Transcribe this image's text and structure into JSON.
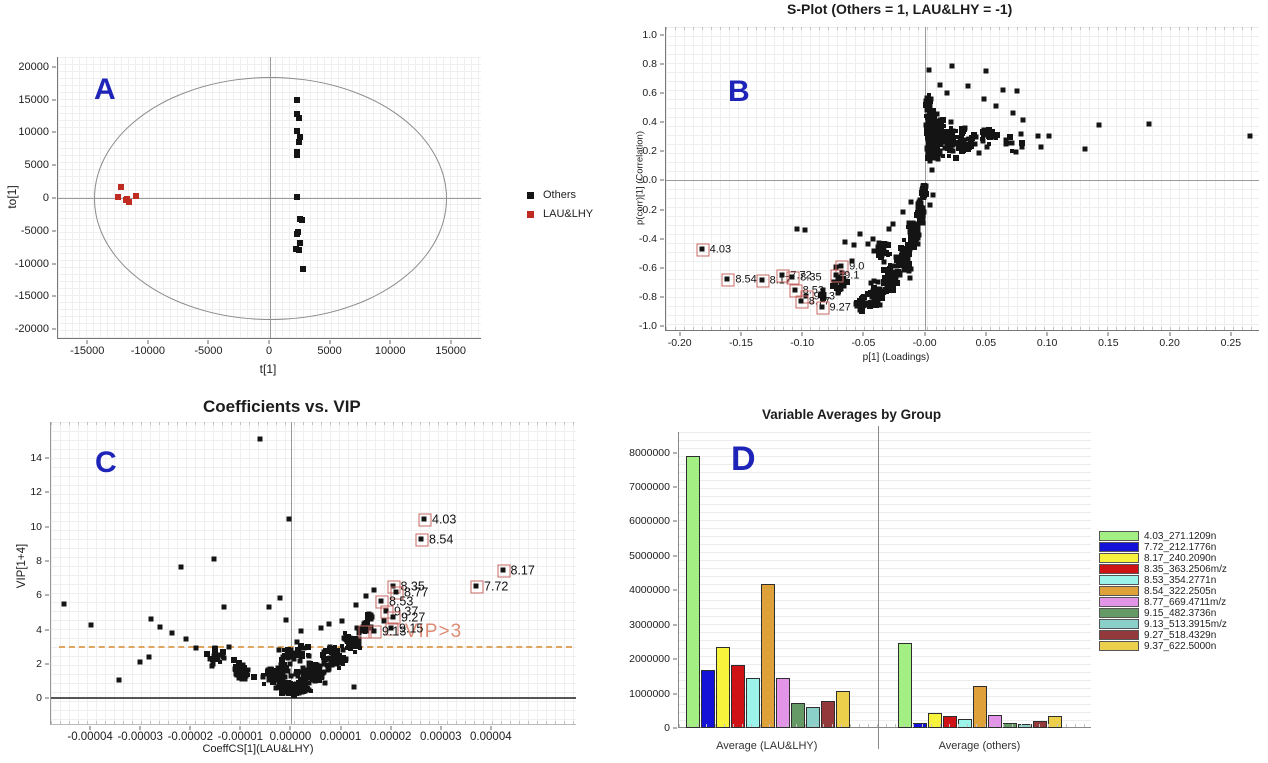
{
  "chart_data": [
    {
      "panel": "A",
      "letter": "A",
      "type": "scatter",
      "xlabel": "t[1]",
      "ylabel": "to[1]",
      "xlim": [
        -17500,
        17500
      ],
      "ylim": [
        -21500,
        21500
      ],
      "xticks": [
        {
          "v": -15000,
          "t": "-15000"
        },
        {
          "v": -10000,
          "t": "-10000"
        },
        {
          "v": -5000,
          "t": "-5000"
        },
        {
          "v": 0,
          "t": "0"
        },
        {
          "v": 5000,
          "t": "5000"
        },
        {
          "v": 10000,
          "t": "10000"
        },
        {
          "v": 15000,
          "t": "15000"
        }
      ],
      "yticks": [
        {
          "v": 20000,
          "t": "20000"
        },
        {
          "v": 15000,
          "t": "15000"
        },
        {
          "v": 10000,
          "t": "10000"
        },
        {
          "v": 5000,
          "t": "5000"
        },
        {
          "v": 0,
          "t": "0"
        },
        {
          "v": -5000,
          "t": "-5000"
        },
        {
          "v": -10000,
          "t": "-10000"
        },
        {
          "v": -15000,
          "t": "-15000"
        },
        {
          "v": -20000,
          "t": "-20000"
        }
      ],
      "zero_lines": true,
      "ellipse": {
        "cx": 0,
        "cy": 0,
        "rx": 14500,
        "ry": 18400
      },
      "legend_items": [
        {
          "label": "Others",
          "color": "#141414"
        },
        {
          "label": "LAU&LHY",
          "color": "#bf2b20"
        }
      ],
      "series": [
        {
          "name": "Others",
          "color": "#141414",
          "marker": 6,
          "points": [
            [
              2300,
              14900
            ],
            [
              2250,
              12750
            ],
            [
              2450,
              12150
            ],
            [
              2300,
              10100
            ],
            [
              2500,
              9300
            ],
            [
              2400,
              8500
            ],
            [
              2250,
              7000
            ],
            [
              2300,
              6450
            ],
            [
              2250,
              50
            ],
            [
              2500,
              -3250
            ],
            [
              2650,
              -3450
            ],
            [
              2350,
              -5350
            ],
            [
              2250,
              -5650
            ],
            [
              2550,
              -6900
            ],
            [
              2200,
              -7850
            ],
            [
              2400,
              -8100
            ],
            [
              2750,
              -10900
            ]
          ]
        },
        {
          "name": "LAU&LHY",
          "color": "#bf2b20",
          "marker": 6,
          "points": [
            [
              -12300,
              1650
            ],
            [
              -12550,
              150
            ],
            [
              -11900,
              -400
            ],
            [
              -11600,
              -700
            ],
            [
              -11050,
              300
            ],
            [
              -11750,
              -250
            ]
          ]
        }
      ]
    },
    {
      "panel": "B",
      "letter": "B",
      "type": "scatter",
      "title": "S-Plot (Others = 1, LAU&LHY = -1)",
      "xlabel": "p[1] (Loadings)",
      "ylabel": "p(corr)[1] (Correlation)",
      "xlim": [
        -0.212,
        0.273
      ],
      "ylim": [
        -1.035,
        1.055
      ],
      "xticks": [
        {
          "v": -0.2,
          "t": "-0.20"
        },
        {
          "v": -0.15,
          "t": "-0.15"
        },
        {
          "v": -0.1,
          "t": "-0.10"
        },
        {
          "v": -0.05,
          "t": "-0.05"
        },
        {
          "v": 0.0,
          "t": "-0.00"
        },
        {
          "v": 0.05,
          "t": "0.05"
        },
        {
          "v": 0.1,
          "t": "0.10"
        },
        {
          "v": 0.15,
          "t": "0.15"
        },
        {
          "v": 0.2,
          "t": "0.20"
        },
        {
          "v": 0.25,
          "t": "0.25"
        }
      ],
      "yticks": [
        {
          "v": 1.0,
          "t": "1.0"
        },
        {
          "v": 0.8,
          "t": "0.8"
        },
        {
          "v": 0.6,
          "t": "0.6"
        },
        {
          "v": 0.4,
          "t": "0.4"
        },
        {
          "v": 0.2,
          "t": "0.2"
        },
        {
          "v": 0.0,
          "t": "-0.0"
        },
        {
          "v": -0.2,
          "t": "-0.2"
        },
        {
          "v": -0.4,
          "t": "-0.4"
        },
        {
          "v": -0.6,
          "t": "-0.6"
        },
        {
          "v": -0.8,
          "t": "-0.8"
        },
        {
          "v": -1.0,
          "t": "-1.0"
        }
      ],
      "zero_lines": true,
      "point_color": "#141414",
      "outliers": [
        [
          -0.105,
          -0.335
        ],
        [
          -0.098,
          -0.345
        ],
        [
          -0.066,
          -0.425
        ],
        [
          -0.058,
          -0.447
        ],
        [
          -0.053,
          -0.373
        ],
        [
          -0.047,
          -0.443
        ],
        [
          -0.043,
          -0.405
        ],
        [
          -0.06,
          -0.556
        ],
        [
          -0.073,
          -0.603
        ],
        [
          -0.03,
          -0.338
        ],
        [
          -0.026,
          -0.306
        ],
        [
          0.095,
          0.225
        ],
        [
          0.101,
          0.305
        ],
        [
          0.131,
          0.212
        ],
        [
          0.142,
          0.381
        ],
        [
          0.183,
          0.386
        ],
        [
          0.266,
          0.305
        ],
        [
          0.075,
          0.612
        ],
        [
          0.064,
          0.618
        ],
        [
          0.05,
          0.752
        ],
        [
          0.022,
          0.786
        ],
        [
          0.003,
          0.756
        ],
        [
          0.035,
          0.651
        ],
        [
          0.048,
          0.557
        ],
        [
          0.058,
          0.509
        ],
        [
          0.072,
          0.463
        ],
        [
          0.08,
          0.412
        ],
        [
          0.092,
          0.302
        ],
        [
          0.012,
          0.652
        ],
        [
          0.018,
          0.601
        ],
        [
          0.006,
          -0.103
        ],
        [
          0.004,
          -0.172
        ],
        [
          -0.012,
          -0.151
        ],
        [
          -0.018,
          -0.218
        ]
      ],
      "clusters": [
        {
          "cx": 0.004,
          "cy": 0.33,
          "sx": 0.0045,
          "sy": 0.3,
          "n": 170,
          "minx": 0.0002
        },
        {
          "cx": 0.01,
          "cy": 0.3,
          "sx": 0.007,
          "sy": 0.22,
          "n": 90,
          "minx": 0.0002
        },
        {
          "cx": 0.02,
          "cy": 0.28,
          "sx": 0.009,
          "sy": 0.15,
          "n": 60,
          "minx": 0.0002
        },
        {
          "cx": 0.033,
          "cy": 0.27,
          "sx": 0.01,
          "sy": 0.13,
          "n": 40,
          "minx": 0.0002
        },
        {
          "cx": 0.05,
          "cy": 0.3,
          "sx": 0.012,
          "sy": 0.13,
          "n": 22,
          "minx": 0.0002
        },
        {
          "cx": 0.07,
          "cy": 0.27,
          "sx": 0.012,
          "sy": 0.11,
          "n": 10,
          "minx": 0.0002
        },
        {
          "cx": 0.002,
          "cy": 0.55,
          "sx": 0.004,
          "sy": 0.06,
          "n": 30,
          "minx": 0.0002
        },
        {
          "cx": -0.001,
          "cy": -0.08,
          "sx": 0.0025,
          "sy": 0.07,
          "n": 50,
          "maxx": 0.002,
          "maxy": -0.01
        },
        {
          "cx": -0.004,
          "cy": -0.22,
          "sx": 0.004,
          "sy": 0.1,
          "n": 55,
          "maxx": 0.002,
          "maxy": -0.02
        },
        {
          "cx": -0.009,
          "cy": -0.38,
          "sx": 0.006,
          "sy": 0.13,
          "n": 60,
          "maxx": 0.002,
          "maxy": -0.02
        },
        {
          "cx": -0.017,
          "cy": -0.55,
          "sx": 0.008,
          "sy": 0.14,
          "n": 60,
          "maxx": 0.002,
          "maxy": -0.02
        },
        {
          "cx": -0.028,
          "cy": -0.68,
          "sx": 0.009,
          "sy": 0.13,
          "n": 55,
          "maxx": 0.002,
          "maxy": -0.02
        },
        {
          "cx": -0.04,
          "cy": -0.78,
          "sx": 0.009,
          "sy": 0.11,
          "n": 45,
          "maxx": 0.002,
          "maxy": -0.02
        },
        {
          "cx": -0.052,
          "cy": -0.85,
          "sx": 0.008,
          "sy": 0.08,
          "n": 25,
          "maxx": 0.002,
          "maxy": -0.02
        },
        {
          "cx": -0.035,
          "cy": -0.5,
          "sx": 0.01,
          "sy": 0.1,
          "n": 25,
          "maxx": 0.002,
          "maxy": -0.02
        },
        {
          "cx": -0.07,
          "cy": -0.72,
          "sx": 0.01,
          "sy": 0.1,
          "n": 20,
          "maxx": 0.002,
          "maxy": -0.02
        },
        {
          "cx": -0.085,
          "cy": -0.8,
          "sx": 0.007,
          "sy": 0.07,
          "n": 10,
          "maxx": 0.002,
          "maxy": -0.02
        }
      ],
      "labeled_points": [
        {
          "x": -0.182,
          "y": -0.48,
          "label": "4.03"
        },
        {
          "x": -0.161,
          "y": -0.69,
          "label": "8.54"
        },
        {
          "x": -0.133,
          "y": -0.7,
          "label": "8.17"
        },
        {
          "x": -0.116,
          "y": -0.662,
          "label": "7.72"
        },
        {
          "x": -0.108,
          "y": -0.676,
          "label": "8.35"
        },
        {
          "x": -0.068,
          "y": -0.597,
          "label": "9.0"
        },
        {
          "x": -0.072,
          "y": -0.66,
          "label": "9.1"
        },
        {
          "x": -0.106,
          "y": -0.768,
          "label": "8.53"
        },
        {
          "x": -0.097,
          "y": -0.806,
          "label": "9.13"
        },
        {
          "x": -0.101,
          "y": -0.845,
          "label": "8.77"
        },
        {
          "x": -0.084,
          "y": -0.885,
          "label": "9.27"
        }
      ]
    },
    {
      "panel": "C",
      "letter": "C",
      "type": "scatter",
      "title": "Coefficients vs. VIP",
      "xlabel": "CoeffCS[1](LAU&LHY)",
      "ylabel": "VIP[1+4]",
      "xlim": [
        -4.8e-05,
        5.7e-05
      ],
      "ylim": [
        -1.55,
        16.1
      ],
      "xticks": [
        {
          "v": -4e-05,
          "t": "-0.00004"
        },
        {
          "v": -3e-05,
          "t": "-0.00003"
        },
        {
          "v": -2e-05,
          "t": "-0.00002"
        },
        {
          "v": -1e-05,
          "t": "-0.00001"
        },
        {
          "v": 0.0,
          "t": "0.00000"
        },
        {
          "v": 1e-05,
          "t": "0.00001"
        },
        {
          "v": 2e-05,
          "t": "0.00002"
        },
        {
          "v": 3e-05,
          "t": "0.00003"
        },
        {
          "v": 4e-05,
          "t": "0.00004"
        }
      ],
      "yticks": [
        {
          "v": 0,
          "t": "0"
        },
        {
          "v": 2,
          "t": "2"
        },
        {
          "v": 4,
          "t": "4"
        },
        {
          "v": 6,
          "t": "6"
        },
        {
          "v": 8,
          "t": "8"
        },
        {
          "v": 10,
          "t": "10"
        },
        {
          "v": 12,
          "t": "12"
        },
        {
          "v": 14,
          "t": "14"
        }
      ],
      "zero_line_x": true,
      "baseline": 0,
      "threshold": {
        "y": 3,
        "label": "VIP>3",
        "label_x": 2.85e-05,
        "label_y": 3.85
      },
      "point_color": "#141414",
      "outliers": [
        [
          -4.55e-05,
          5.45
        ],
        [
          -4e-05,
          4.25
        ],
        [
          -2.8e-05,
          4.6
        ],
        [
          -2.62e-05,
          4.1
        ],
        [
          -2.85e-05,
          2.35
        ],
        [
          -2.2e-05,
          7.65
        ],
        [
          -2.38e-05,
          3.75
        ],
        [
          -2.1e-05,
          3.4
        ],
        [
          -1.55e-05,
          8.1
        ],
        [
          -1.35e-05,
          5.3
        ],
        [
          -6.2e-06,
          15.1
        ],
        [
          -5e-07,
          10.45
        ],
        [
          -2.2e-06,
          5.8
        ],
        [
          1.65e-05,
          6.3
        ],
        [
          1.5e-05,
          5.95
        ],
        [
          1.3e-05,
          5.4
        ],
        [
          1.25e-05,
          0.62
        ],
        [
          1.85e-05,
          4.45
        ],
        [
          6e-06,
          4.05
        ],
        [
          7.5e-06,
          4.3
        ],
        [
          -1e-06,
          4.5
        ],
        [
          -4.5e-06,
          5.3
        ],
        [
          2e-06,
          3.9
        ],
        [
          -1.25e-05,
          2.95
        ],
        [
          -1.9e-05,
          2.9
        ],
        [
          1.02e-05,
          4.45
        ],
        [
          -3.45e-05,
          1.05
        ],
        [
          -3.02e-05,
          2.1
        ]
      ],
      "clusters": [
        {
          "cx": 5e-07,
          "cy": 0.55,
          "sx": 4e-06,
          "sy": 0.45,
          "n": 200,
          "miny": 0.08
        },
        {
          "cx": -3e-06,
          "cy": 1.3,
          "sx": 3.5e-06,
          "sy": 0.7,
          "n": 70,
          "miny": 0.08
        },
        {
          "cx": 4e-06,
          "cy": 1.4,
          "sx": 4e-06,
          "sy": 0.7,
          "n": 80,
          "miny": 0.08
        },
        {
          "cx": 8.5e-06,
          "cy": 2.3,
          "sx": 3.5e-06,
          "sy": 0.8,
          "n": 60,
          "miny": 0.08
        },
        {
          "cx": 1.2e-05,
          "cy": 3.2,
          "sx": 2.8e-06,
          "sy": 0.7,
          "n": 45,
          "miny": 0.1
        },
        {
          "cx": 1.45e-05,
          "cy": 4.0,
          "sx": 2e-06,
          "sy": 0.6,
          "n": 25,
          "miny": 0.1
        },
        {
          "cx": 1.6e-05,
          "cy": 4.8,
          "sx": 1.5e-06,
          "sy": 0.5,
          "n": 12,
          "miny": 0.1
        },
        {
          "cx": -1e-05,
          "cy": 1.6,
          "sx": 3e-06,
          "sy": 0.8,
          "n": 35,
          "miny": 0.08
        },
        {
          "cx": -1.5e-05,
          "cy": 2.4,
          "sx": 2.5e-06,
          "sy": 0.7,
          "n": 18,
          "miny": 0.08
        },
        {
          "cx": 5e-07,
          "cy": 2.6,
          "sx": 4.5e-06,
          "sy": 0.9,
          "n": 40,
          "miny": 0.08
        }
      ],
      "labeled_points": [
        {
          "x": 2.68e-05,
          "y": 10.4,
          "label": "4.03"
        },
        {
          "x": 2.62e-05,
          "y": 9.2,
          "label": "8.54"
        },
        {
          "x": 4.25e-05,
          "y": 7.4,
          "label": "8.17"
        },
        {
          "x": 3.72e-05,
          "y": 6.45,
          "label": "7.72"
        },
        {
          "x": 2.05e-05,
          "y": 6.45,
          "label": "8.35"
        },
        {
          "x": 2.12e-05,
          "y": 6.1,
          "label": "8.77"
        },
        {
          "x": 1.82e-05,
          "y": 5.6,
          "label": "8.53"
        },
        {
          "x": 1.92e-05,
          "y": 5.0,
          "label": "9.37"
        },
        {
          "x": 2.06e-05,
          "y": 4.65,
          "label": "9.27"
        },
        {
          "x": 2.02e-05,
          "y": 4.0,
          "label": "9.15"
        },
        {
          "x": 1.68e-05,
          "y": 3.85,
          "label": "9.13"
        },
        {
          "x": 1.48e-05,
          "y": 3.8,
          "label": ""
        }
      ]
    },
    {
      "panel": "D",
      "letter": "D",
      "type": "bar",
      "title": "Variable Averages by Group",
      "categories": [
        "Average (LAU&LHY)",
        "Average (others)"
      ],
      "ylim": [
        0,
        8600000
      ],
      "yticks": [
        {
          "v": 0,
          "t": "0"
        },
        {
          "v": 1000000,
          "t": "1000000"
        },
        {
          "v": 2000000,
          "t": "2000000"
        },
        {
          "v": 3000000,
          "t": "3000000"
        },
        {
          "v": 4000000,
          "t": "4000000"
        },
        {
          "v": 5000000,
          "t": "5000000"
        },
        {
          "v": 6000000,
          "t": "6000000"
        },
        {
          "v": 7000000,
          "t": "7000000"
        },
        {
          "v": 8000000,
          "t": "8000000"
        }
      ],
      "series": [
        {
          "name": "4.03_271.1209n",
          "color": "#a3ef83",
          "values": [
            7900000,
            2480000
          ]
        },
        {
          "name": "7.72_212.1776n",
          "color": "#1412d6",
          "values": [
            1680000,
            150000
          ]
        },
        {
          "name": "8.17_240.2090n",
          "color": "#f7f23b",
          "values": [
            2350000,
            430000
          ]
        },
        {
          "name": "8.35_363.2506m/z",
          "color": "#cf1215",
          "values": [
            1840000,
            340000
          ]
        },
        {
          "name": "8.53_354.2771n",
          "color": "#9cf3e9",
          "values": [
            1450000,
            270000
          ]
        },
        {
          "name": "8.54_322.2505n",
          "color": "#dfa23b",
          "values": [
            4170000,
            1230000
          ]
        },
        {
          "name": "8.77_669.4711m/z",
          "color": "#e295e6",
          "values": [
            1450000,
            390000
          ]
        },
        {
          "name": "9.15_482.3736n",
          "color": "#659a67",
          "values": [
            730000,
            150000
          ]
        },
        {
          "name": "9.13_513.3915m/z",
          "color": "#8bd0c8",
          "values": [
            620000,
            120000
          ]
        },
        {
          "name": "9.27_518.4329n",
          "color": "#94393b",
          "values": [
            780000,
            190000
          ]
        },
        {
          "name": "9.37_622.5000n",
          "color": "#ecd04c",
          "values": [
            1080000,
            340000
          ]
        }
      ]
    }
  ]
}
